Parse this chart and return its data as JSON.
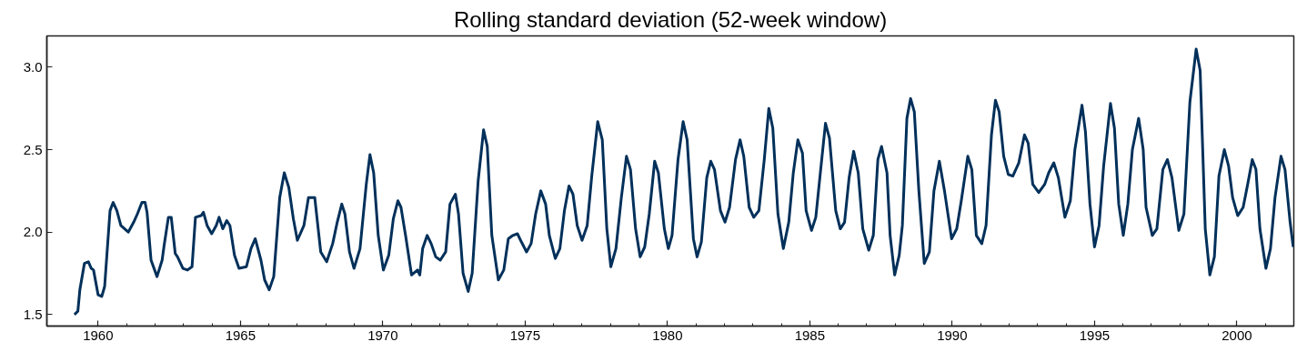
{
  "chart_data": {
    "type": "line",
    "title": "Rolling standard deviation (52-week window)",
    "xlim": [
      1958.2,
      2002.0
    ],
    "ylim": [
      1.43,
      3.19
    ],
    "xticks": [
      1960,
      {
        "value": 1961,
        "label": null
      },
      {
        "value": 1962,
        "label": null
      },
      {
        "value": 1963,
        "label": null
      },
      {
        "value": 1964,
        "label": null
      },
      1965,
      {
        "value": 1966,
        "label": null
      },
      {
        "value": 1967,
        "label": null
      },
      {
        "value": 1968,
        "label": null
      },
      {
        "value": 1969,
        "label": null
      },
      1970,
      {
        "value": 1971,
        "label": null
      },
      {
        "value": 1972,
        "label": null
      },
      {
        "value": 1973,
        "label": null
      },
      {
        "value": 1974,
        "label": null
      },
      1975,
      {
        "value": 1976,
        "label": null
      },
      {
        "value": 1977,
        "label": null
      },
      {
        "value": 1978,
        "label": null
      },
      {
        "value": 1979,
        "label": null
      },
      1980,
      {
        "value": 1981,
        "label": null
      },
      {
        "value": 1982,
        "label": null
      },
      {
        "value": 1983,
        "label": null
      },
      {
        "value": 1984,
        "label": null
      },
      1985,
      {
        "value": 1986,
        "label": null
      },
      {
        "value": 1987,
        "label": null
      },
      {
        "value": 1988,
        "label": null
      },
      {
        "value": 1989,
        "label": null
      },
      1990,
      {
        "value": 1991,
        "label": null
      },
      {
        "value": 1992,
        "label": null
      },
      {
        "value": 1993,
        "label": null
      },
      {
        "value": 1994,
        "label": null
      },
      1995,
      {
        "value": 1996,
        "label": null
      },
      {
        "value": 1997,
        "label": null
      },
      {
        "value": 1998,
        "label": null
      },
      {
        "value": 1999,
        "label": null
      },
      2000,
      {
        "value": 2001,
        "label": null
      }
    ],
    "yticks": [
      {
        "value": 1.5,
        "label": "1.5"
      },
      {
        "value": 2.0,
        "label": "2.0"
      },
      {
        "value": 2.5,
        "label": "2.5"
      },
      {
        "value": 3.0,
        "label": "3.0"
      }
    ],
    "grid": false,
    "marker": "none",
    "line_style": "solid",
    "series": [
      {
        "color": "#00305a",
        "x": [
          1959.17,
          1959.29,
          1959.36,
          1959.52,
          1959.66,
          1959.76,
          1959.84,
          1960.0,
          1960.13,
          1960.23,
          1960.42,
          1960.53,
          1960.66,
          1960.8,
          1961.06,
          1961.25,
          1961.38,
          1961.54,
          1961.65,
          1961.72,
          1961.86,
          1962.07,
          1962.25,
          1962.32,
          1962.47,
          1962.57,
          1962.71,
          1962.79,
          1962.98,
          1963.14,
          1963.3,
          1963.42,
          1963.62,
          1963.7,
          1963.83,
          1963.99,
          1964.15,
          1964.25,
          1964.38,
          1964.52,
          1964.63,
          1964.79,
          1964.95,
          1965.21,
          1965.37,
          1965.52,
          1965.72,
          1965.85,
          1966.01,
          1966.17,
          1966.38,
          1966.54,
          1966.7,
          1966.86,
          1967.0,
          1967.23,
          1967.39,
          1967.61,
          1967.82,
          1968.03,
          1968.24,
          1968.4,
          1968.56,
          1968.67,
          1968.83,
          1968.99,
          1969.2,
          1969.42,
          1969.55,
          1969.68,
          1969.84,
          1970.02,
          1970.21,
          1970.37,
          1970.53,
          1970.64,
          1970.8,
          1971.01,
          1971.22,
          1971.3,
          1971.4,
          1971.56,
          1971.7,
          1971.86,
          1972.02,
          1972.21,
          1972.36,
          1972.55,
          1972.66,
          1972.82,
          1973.0,
          1973.14,
          1973.35,
          1973.54,
          1973.67,
          1973.83,
          1974.06,
          1974.25,
          1974.41,
          1974.57,
          1974.73,
          1974.87,
          1975.05,
          1975.21,
          1975.37,
          1975.55,
          1975.72,
          1975.85,
          1976.06,
          1976.22,
          1976.38,
          1976.54,
          1976.68,
          1976.83,
          1977.0,
          1977.18,
          1977.34,
          1977.55,
          1977.71,
          1977.87,
          1978.01,
          1978.19,
          1978.38,
          1978.56,
          1978.7,
          1978.88,
          1979.04,
          1979.2,
          1979.36,
          1979.55,
          1979.68,
          1979.89,
          1980.03,
          1980.16,
          1980.37,
          1980.55,
          1980.69,
          1980.91,
          1981.04,
          1981.19,
          1981.38,
          1981.52,
          1981.65,
          1981.86,
          1982.02,
          1982.18,
          1982.39,
          1982.55,
          1982.68,
          1982.87,
          1983.03,
          1983.21,
          1983.4,
          1983.56,
          1983.7,
          1983.88,
          1984.07,
          1984.26,
          1984.42,
          1984.58,
          1984.74,
          1984.87,
          1985.06,
          1985.21,
          1985.37,
          1985.55,
          1985.69,
          1985.91,
          1986.07,
          1986.22,
          1986.38,
          1986.54,
          1986.7,
          1986.86,
          1987.07,
          1987.23,
          1987.39,
          1987.52,
          1987.71,
          1987.82,
          1987.98,
          1988.14,
          1988.25,
          1988.41,
          1988.54,
          1988.67,
          1988.83,
          1989.02,
          1989.2,
          1989.36,
          1989.55,
          1989.73,
          1989.98,
          1990.16,
          1990.32,
          1990.55,
          1990.69,
          1990.85,
          1991.04,
          1991.19,
          1991.38,
          1991.52,
          1991.65,
          1991.81,
          1991.97,
          1992.13,
          1992.34,
          1992.54,
          1992.67,
          1992.83,
          1993.04,
          1993.25,
          1993.39,
          1993.57,
          1993.73,
          1993.96,
          1994.15,
          1994.31,
          1994.56,
          1994.68,
          1994.84,
          1995.0,
          1995.16,
          1995.32,
          1995.56,
          1995.7,
          1995.85,
          1996.01,
          1996.17,
          1996.33,
          1996.55,
          1996.71,
          1996.81,
          1997.03,
          1997.19,
          1997.4,
          1997.56,
          1997.72,
          1997.96,
          1998.14,
          1998.35,
          1998.57,
          1998.71,
          1998.89,
          1999.05,
          1999.21,
          1999.37,
          1999.56,
          1999.71,
          1999.85,
          2000.03,
          2000.22,
          2000.38,
          2000.54,
          2000.67,
          2000.81,
          2001.02,
          2001.18,
          2001.34,
          2001.55,
          2001.69,
          2001.87,
          2001.98
        ],
        "values": [
          1.5,
          1.52,
          1.65,
          1.81,
          1.82,
          1.78,
          1.77,
          1.62,
          1.61,
          1.67,
          2.13,
          2.18,
          2.13,
          2.04,
          2.0,
          2.06,
          2.11,
          2.18,
          2.18,
          2.12,
          1.83,
          1.73,
          1.83,
          1.92,
          2.09,
          2.09,
          1.87,
          1.85,
          1.78,
          1.77,
          1.79,
          2.09,
          2.1,
          2.12,
          2.04,
          1.99,
          2.04,
          2.09,
          2.02,
          2.07,
          2.04,
          1.86,
          1.78,
          1.79,
          1.9,
          1.96,
          1.83,
          1.71,
          1.65,
          1.73,
          2.21,
          2.36,
          2.27,
          2.08,
          1.95,
          2.04,
          2.21,
          2.21,
          1.88,
          1.82,
          1.93,
          2.06,
          2.17,
          2.11,
          1.88,
          1.78,
          1.9,
          2.29,
          2.47,
          2.36,
          1.98,
          1.77,
          1.86,
          2.08,
          2.19,
          2.15,
          1.98,
          1.74,
          1.77,
          1.74,
          1.9,
          1.98,
          1.93,
          1.85,
          1.83,
          1.88,
          2.17,
          2.23,
          2.11,
          1.75,
          1.64,
          1.75,
          2.31,
          2.62,
          2.52,
          1.98,
          1.71,
          1.77,
          1.96,
          1.98,
          1.99,
          1.94,
          1.88,
          1.93,
          2.11,
          2.25,
          2.17,
          1.98,
          1.84,
          1.9,
          2.13,
          2.28,
          2.23,
          2.04,
          1.95,
          2.04,
          2.34,
          2.67,
          2.56,
          2.02,
          1.79,
          1.9,
          2.21,
          2.46,
          2.38,
          2.02,
          1.85,
          1.91,
          2.11,
          2.43,
          2.36,
          2.02,
          1.9,
          1.98,
          2.44,
          2.67,
          2.56,
          1.96,
          1.85,
          1.94,
          2.33,
          2.43,
          2.38,
          2.13,
          2.06,
          2.15,
          2.44,
          2.56,
          2.46,
          2.15,
          2.09,
          2.13,
          2.44,
          2.75,
          2.63,
          2.11,
          1.9,
          2.06,
          2.36,
          2.56,
          2.48,
          2.13,
          2.01,
          2.09,
          2.36,
          2.66,
          2.57,
          2.13,
          2.02,
          2.06,
          2.33,
          2.49,
          2.36,
          2.02,
          1.89,
          1.98,
          2.44,
          2.52,
          2.36,
          1.98,
          1.74,
          1.86,
          2.04,
          2.69,
          2.81,
          2.73,
          2.25,
          1.81,
          1.88,
          2.25,
          2.43,
          2.25,
          1.96,
          2.02,
          2.19,
          2.46,
          2.38,
          1.98,
          1.93,
          2.04,
          2.59,
          2.8,
          2.73,
          2.46,
          2.35,
          2.34,
          2.42,
          2.59,
          2.54,
          2.29,
          2.24,
          2.29,
          2.36,
          2.42,
          2.33,
          2.09,
          2.19,
          2.5,
          2.77,
          2.61,
          2.17,
          1.91,
          2.04,
          2.4,
          2.78,
          2.63,
          2.17,
          1.98,
          2.17,
          2.5,
          2.69,
          2.5,
          2.15,
          1.98,
          2.02,
          2.38,
          2.44,
          2.33,
          2.01,
          2.11,
          2.79,
          3.11,
          2.98,
          2.02,
          1.74,
          1.85,
          2.34,
          2.5,
          2.4,
          2.21,
          2.1,
          2.15,
          2.29,
          2.44,
          2.38,
          2.02,
          1.78,
          1.9,
          2.21,
          2.46,
          2.38,
          2.06,
          1.91
        ]
      }
    ]
  }
}
